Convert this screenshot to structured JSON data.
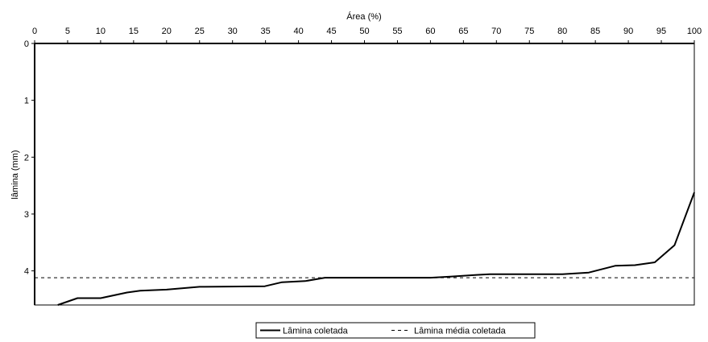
{
  "chart_data": {
    "type": "line",
    "xlabel": "Área (%)",
    "ylabel": "lâmina (mm)",
    "xlim": [
      0,
      100
    ],
    "ylim": [
      0,
      4.6
    ],
    "y_inverted": true,
    "x_axis_position": "top",
    "x_ticks": [
      "0",
      "5",
      "10",
      "15",
      "20",
      "25",
      "30",
      "35",
      "40",
      "45",
      "50",
      "55",
      "60",
      "65",
      "70",
      "75",
      "80",
      "85",
      "90",
      "95",
      "100"
    ],
    "y_ticks": [
      "0",
      "1",
      "2",
      "3",
      "4"
    ],
    "grid": false,
    "legend_position": "bottom",
    "series": [
      {
        "name": "Lâmina coletada",
        "style": "solid",
        "color": "#000000",
        "x": [
          3.5,
          6.5,
          10,
          14,
          16,
          20,
          25,
          34.9,
          37.5,
          41,
          44,
          50,
          60,
          63,
          67,
          69,
          75,
          80,
          84,
          88,
          91,
          94,
          97,
          100
        ],
        "y": [
          4.6,
          4.48,
          4.48,
          4.38,
          4.35,
          4.33,
          4.28,
          4.27,
          4.2,
          4.18,
          4.12,
          4.12,
          4.12,
          4.1,
          4.07,
          4.06,
          4.06,
          4.06,
          4.03,
          3.91,
          3.9,
          3.85,
          3.55,
          2.62
        ]
      },
      {
        "name": "Lâmina média coletada",
        "style": "dashed",
        "color": "#000000",
        "x": [
          0,
          100
        ],
        "y": [
          4.12,
          4.12
        ]
      }
    ]
  }
}
